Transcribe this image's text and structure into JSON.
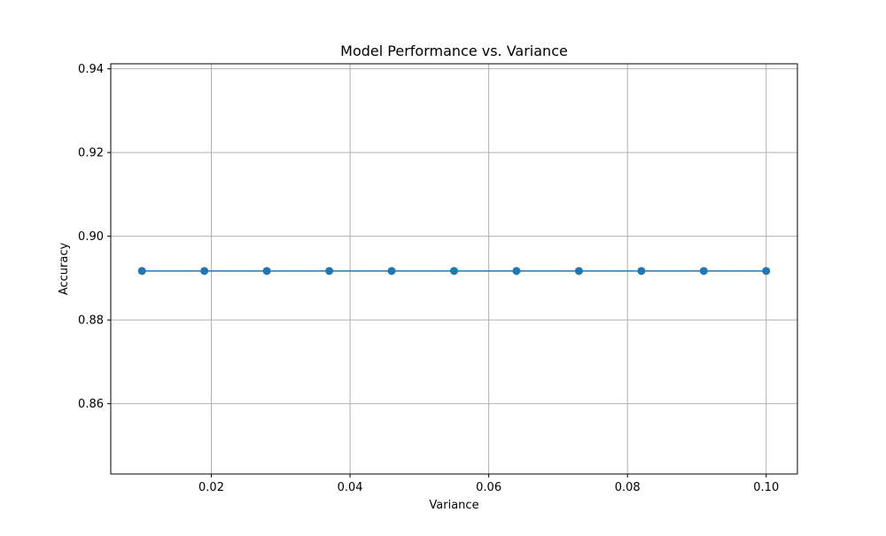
{
  "chart_data": {
    "type": "line",
    "title": "Model Performance vs. Variance",
    "xlabel": "Variance",
    "ylabel": "Accuracy",
    "xlim": [
      0.0055,
      0.1045
    ],
    "ylim": [
      0.8432,
      0.9412
    ],
    "x_ticks": [
      0.02,
      0.04,
      0.06,
      0.08,
      0.1
    ],
    "x_tick_labels": [
      "0.02",
      "0.04",
      "0.06",
      "0.08",
      "0.10"
    ],
    "y_ticks": [
      0.86,
      0.88,
      0.9,
      0.92,
      0.94
    ],
    "y_tick_labels": [
      "0.86",
      "0.88",
      "0.90",
      "0.92",
      "0.94"
    ],
    "grid": true,
    "series": [
      {
        "color": "#1f77b4",
        "marker": "circle",
        "x": [
          0.01,
          0.019,
          0.028,
          0.037,
          0.046,
          0.055,
          0.064,
          0.073,
          0.082,
          0.091,
          0.1
        ],
        "y": [
          0.8917,
          0.8917,
          0.8917,
          0.8917,
          0.8917,
          0.8917,
          0.8917,
          0.8917,
          0.8917,
          0.8917,
          0.8917
        ]
      }
    ]
  }
}
